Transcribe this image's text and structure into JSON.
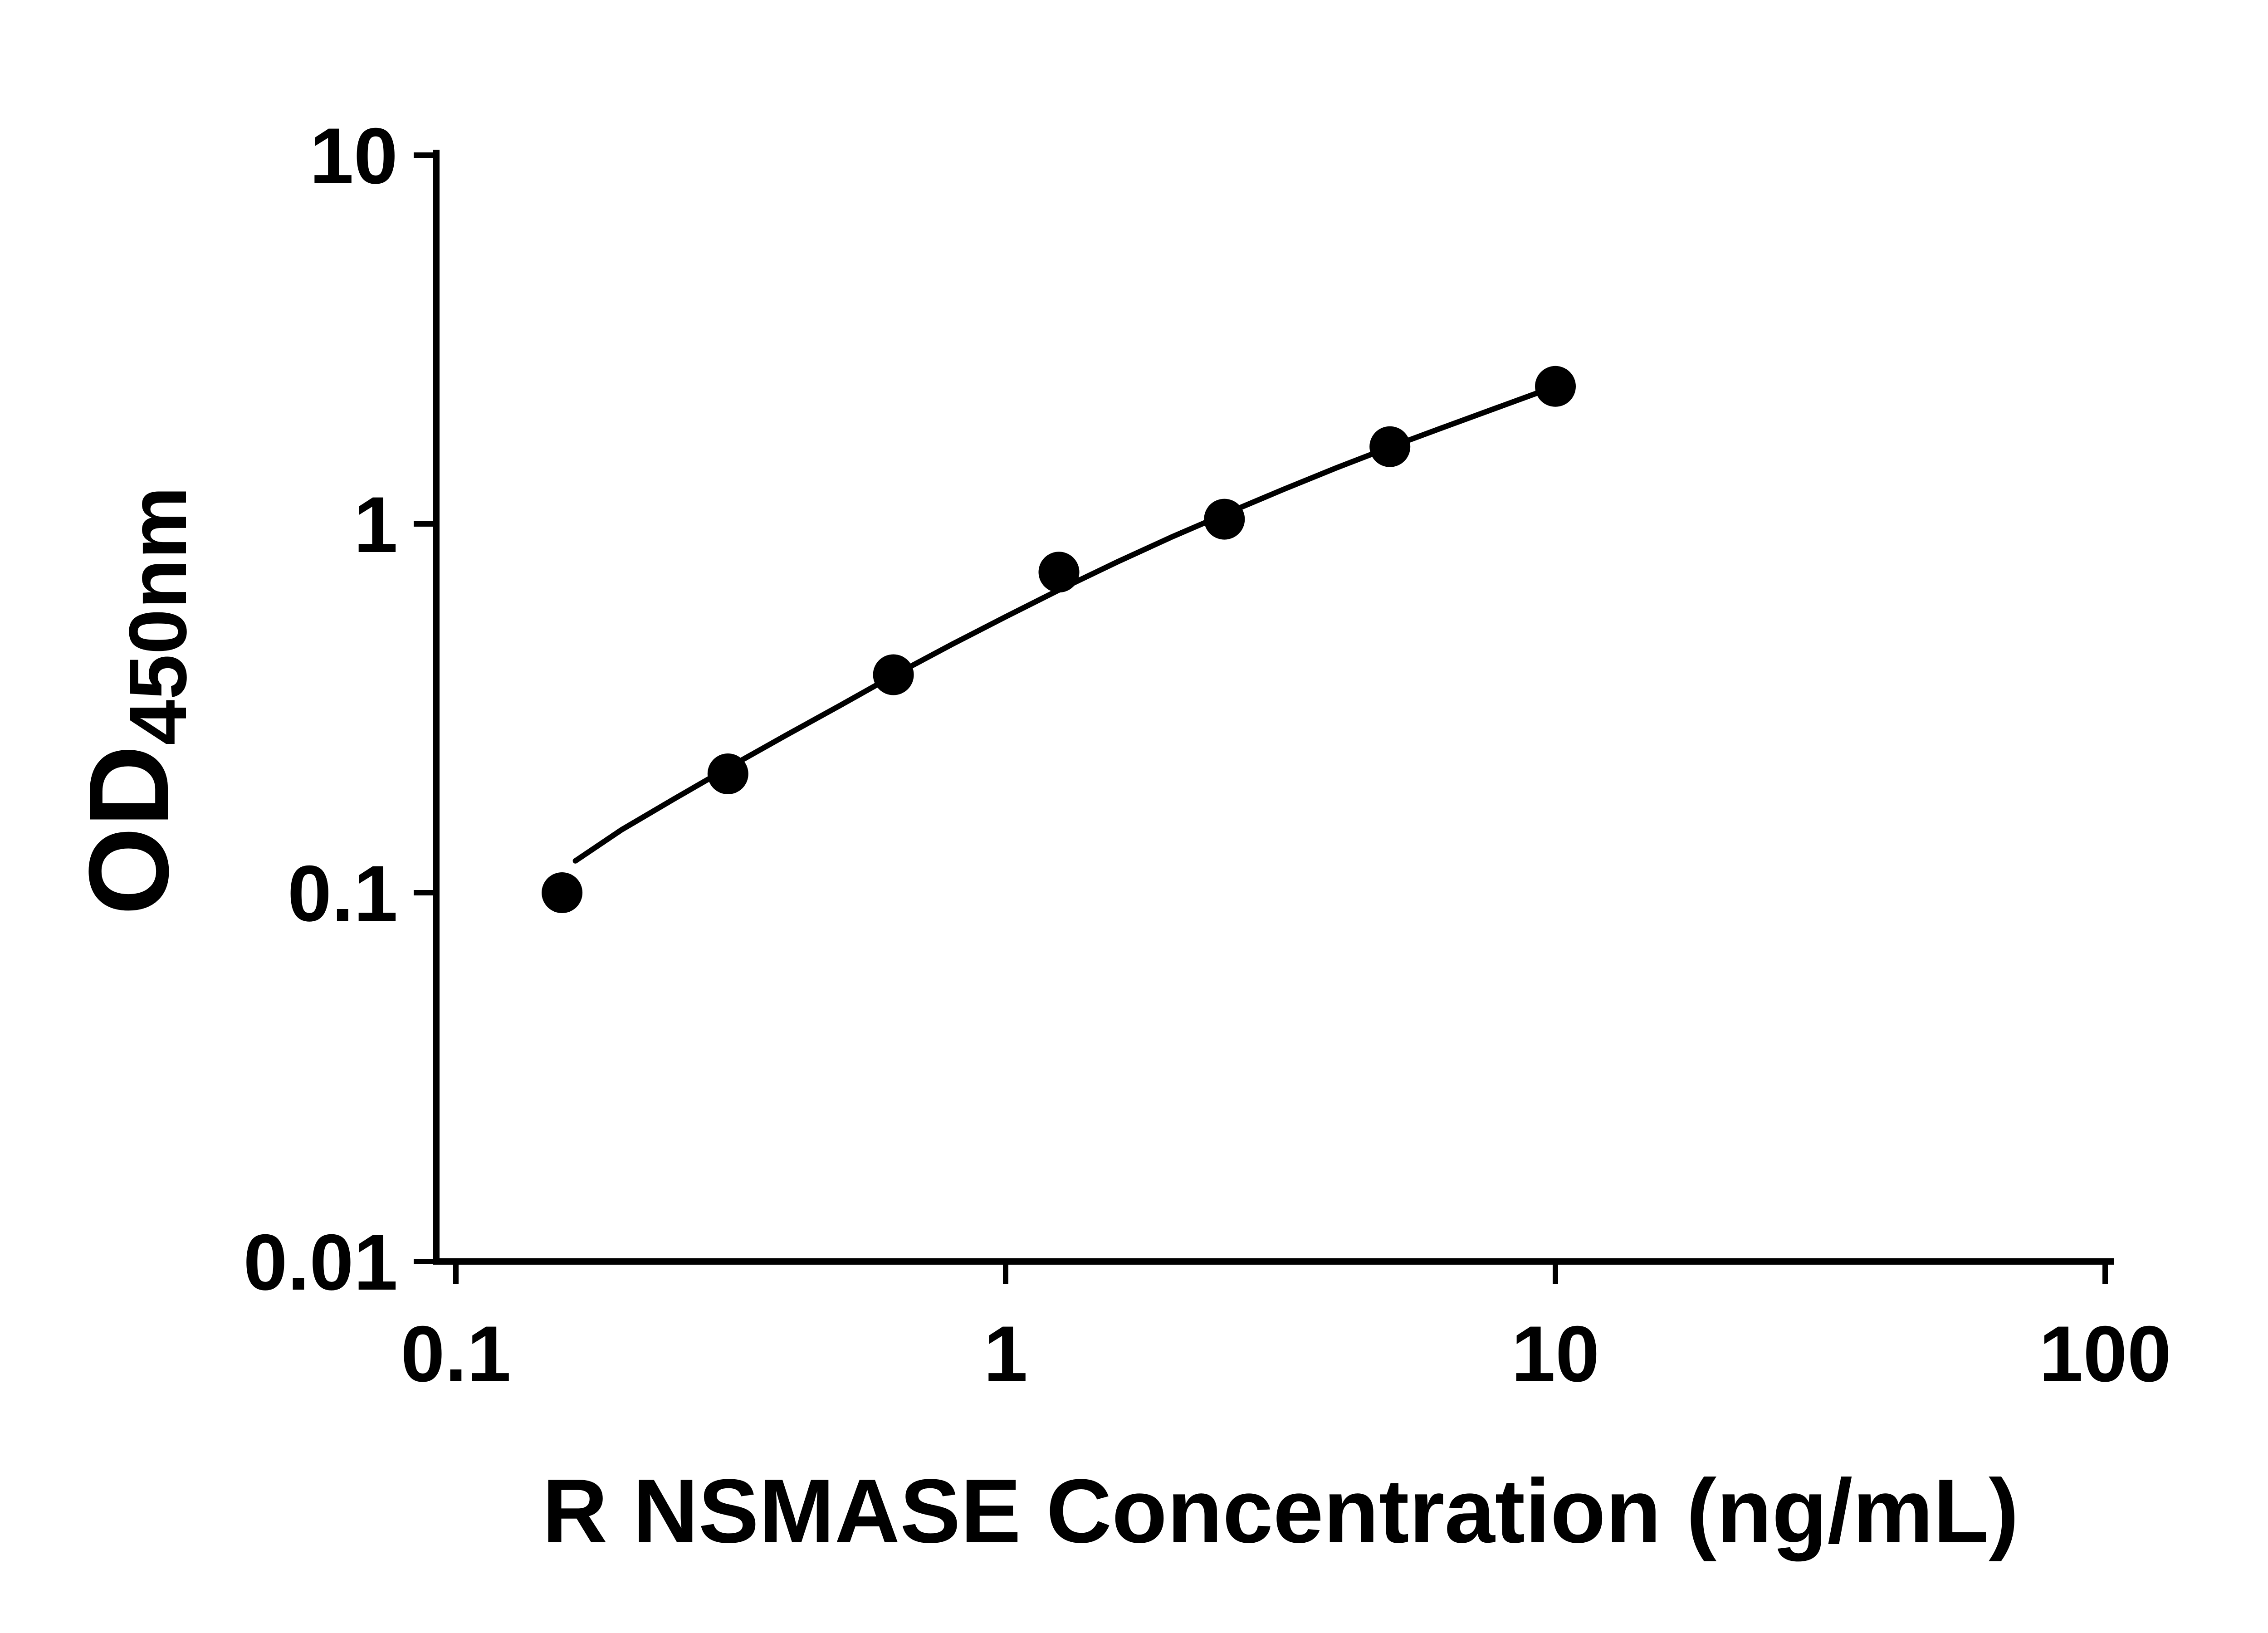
{
  "chart_data": {
    "type": "scatter",
    "title": "",
    "xlabel": "R NSMASE Concentration (ng/mL)",
    "ylabel": "OD450nm",
    "ylabel_main": "OD",
    "ylabel_sub": "450nm",
    "x_scale": "log",
    "y_scale": "log",
    "xlim": [
      0.1,
      100
    ],
    "ylim": [
      0.01,
      10
    ],
    "grid": "off",
    "legend": "none",
    "axis_color": "#000000",
    "marker_color": "#000000",
    "line_color": "#000000",
    "x_ticks": [
      {
        "value": 0.1,
        "label": "0.1"
      },
      {
        "value": 1,
        "label": "1"
      },
      {
        "value": 10,
        "label": "10"
      },
      {
        "value": 100,
        "label": "100"
      }
    ],
    "y_ticks": [
      {
        "value": 10,
        "label": "10"
      },
      {
        "value": 1,
        "label": "1"
      },
      {
        "value": 0.1,
        "label": "0.1"
      },
      {
        "value": 0.01,
        "label": "0.01"
      }
    ],
    "points": [
      {
        "x": 0.156,
        "y": 0.1
      },
      {
        "x": 0.3125,
        "y": 0.21
      },
      {
        "x": 0.625,
        "y": 0.39
      },
      {
        "x": 1.25,
        "y": 0.74
      },
      {
        "x": 2.5,
        "y": 1.03
      },
      {
        "x": 5,
        "y": 1.62
      },
      {
        "x": 10,
        "y": 2.36
      }
    ],
    "fit_curve": [
      [
        0.165,
        0.122
      ],
      [
        0.2,
        0.148
      ],
      [
        0.25,
        0.18
      ],
      [
        0.3125,
        0.218
      ],
      [
        0.4,
        0.268
      ],
      [
        0.5,
        0.322
      ],
      [
        0.625,
        0.388
      ],
      [
        0.8,
        0.472
      ],
      [
        1.0,
        0.56
      ],
      [
        1.25,
        0.662
      ],
      [
        1.6,
        0.79
      ],
      [
        2.0,
        0.92
      ],
      [
        2.5,
        1.062
      ],
      [
        3.2,
        1.24
      ],
      [
        4.0,
        1.42
      ],
      [
        5.0,
        1.615
      ],
      [
        6.3,
        1.835
      ],
      [
        8.0,
        2.09
      ],
      [
        10.0,
        2.36
      ]
    ]
  }
}
